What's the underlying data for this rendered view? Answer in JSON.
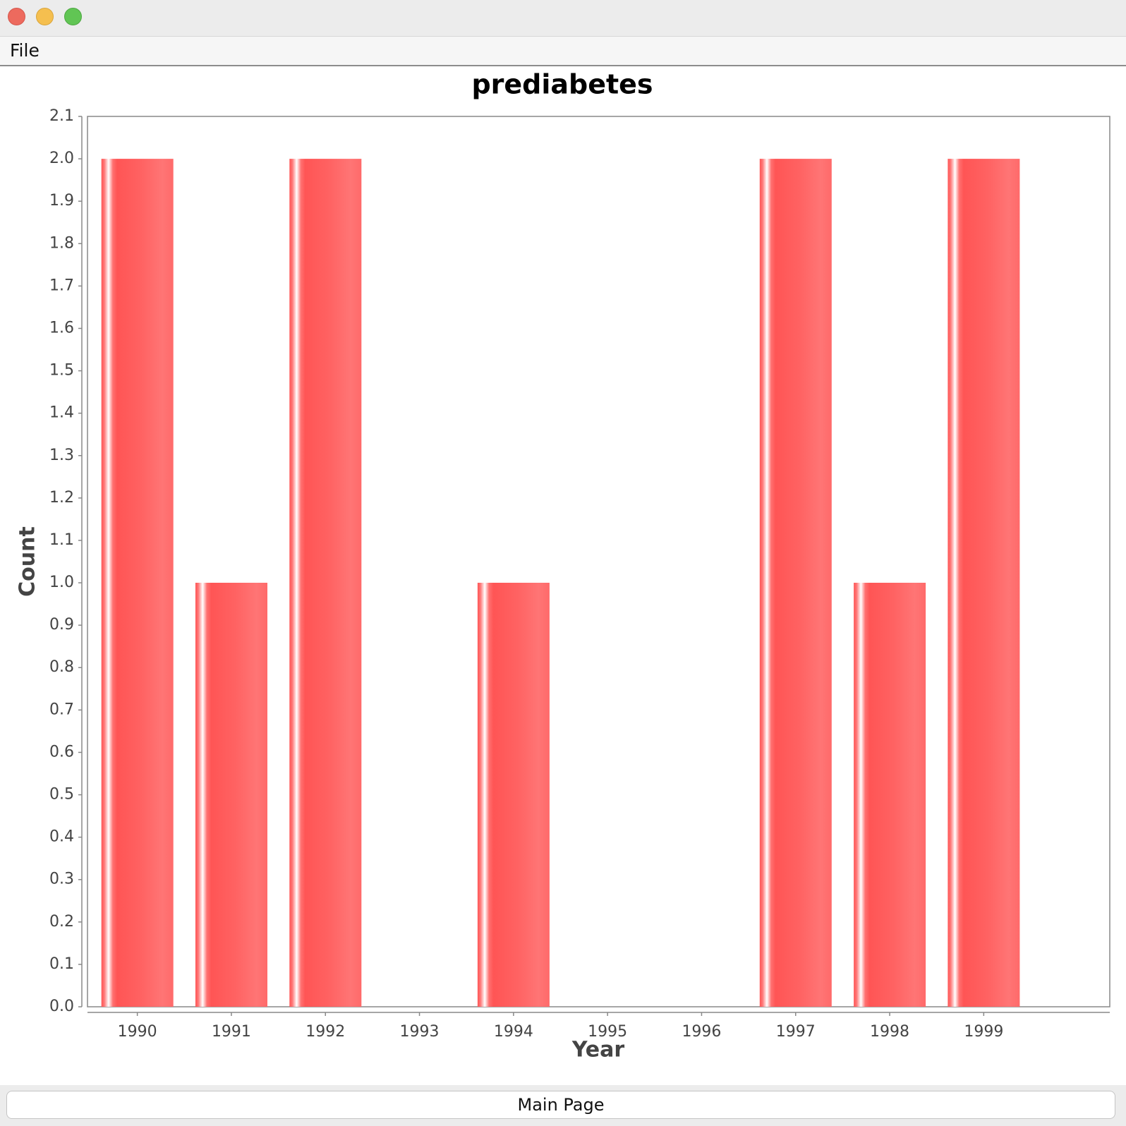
{
  "window": {
    "controls": {
      "close": "close-icon",
      "minimize": "minimize-icon",
      "maximize": "maximize-icon"
    }
  },
  "menu": {
    "file_label": "File"
  },
  "chart_data": {
    "type": "bar",
    "title": "prediabetes",
    "xlabel": "Year",
    "ylabel": "Count",
    "categories": [
      "1990",
      "1991",
      "1992",
      "1993",
      "1994",
      "1995",
      "1996",
      "1997",
      "1998",
      "1999"
    ],
    "values": [
      2,
      1,
      2,
      0,
      1,
      0,
      0,
      2,
      1,
      2
    ],
    "ylim": [
      0.0,
      2.1
    ],
    "yticks": [
      "0.0",
      "0.1",
      "0.2",
      "0.3",
      "0.4",
      "0.5",
      "0.6",
      "0.7",
      "0.8",
      "0.9",
      "1.0",
      "1.1",
      "1.2",
      "1.3",
      "1.4",
      "1.5",
      "1.6",
      "1.7",
      "1.8",
      "1.9",
      "2.0",
      "2.1"
    ],
    "grid": false,
    "legend": "none",
    "bar_color": "#ff5555"
  },
  "footer": {
    "main_page_label": "Main Page"
  }
}
